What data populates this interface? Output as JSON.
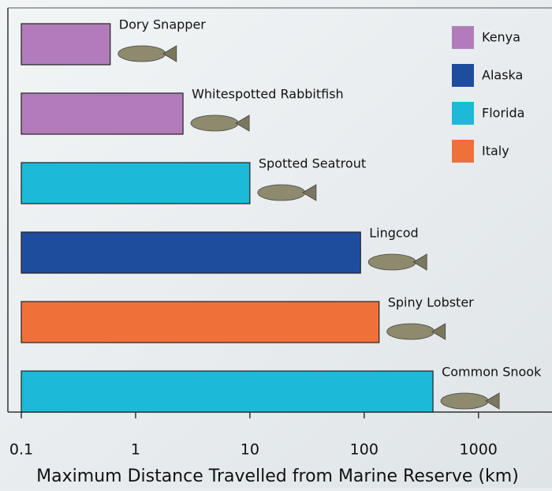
{
  "chart_data": {
    "type": "bar",
    "orientation": "horizontal",
    "xlabel": "Maximum Distance Travelled from Marine Reserve (km)",
    "categories": [
      "Dory Snapper",
      "Whitespotted Rabbitfish",
      "Spotted Seatrout",
      "Lingcod",
      "Spiny Lobster",
      "Common Snook"
    ],
    "values": [
      0.6,
      2.6,
      10,
      93,
      135,
      400
    ],
    "regions": [
      "Kenya",
      "Kenya",
      "Florida",
      "Alaska",
      "Italy",
      "Florida"
    ],
    "legend": [
      {
        "name": "Kenya",
        "color": "#b27cbb"
      },
      {
        "name": "Alaska",
        "color": "#1f4d9e"
      },
      {
        "name": "Florida",
        "color": "#1cb9d8"
      },
      {
        "name": "Italy",
        "color": "#f0703a"
      }
    ],
    "xscale": "log",
    "xlim": [
      0.1,
      4400
    ],
    "xticks": [
      0.1,
      1,
      10,
      100,
      1000
    ]
  }
}
